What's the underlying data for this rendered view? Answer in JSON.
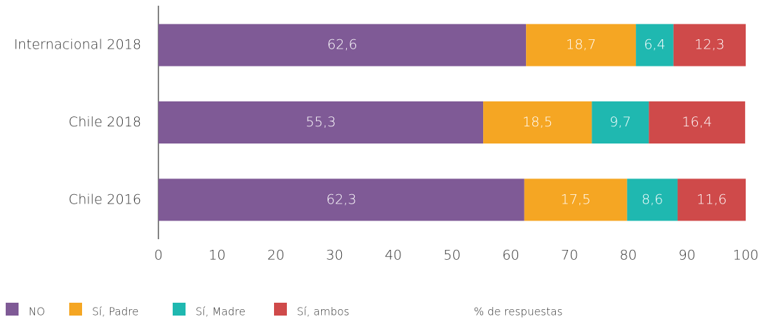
{
  "chart_data": {
    "type": "stacked-bar-horizontal",
    "categories": [
      "Internacional 2018",
      "Chile 2018",
      "Chile 2016"
    ],
    "series": [
      {
        "name": "NO",
        "color": "#7f5a96",
        "values": [
          62.6,
          55.3,
          62.3
        ],
        "value_labels": [
          "62,6",
          "55,3",
          "62,3"
        ]
      },
      {
        "name": "Sí, Padre",
        "color": "#f5a623",
        "values": [
          18.7,
          18.5,
          17.5
        ],
        "value_labels": [
          "18,7",
          "18,5",
          "17,5"
        ]
      },
      {
        "name": "Sí, Madre",
        "color": "#1fb8b0",
        "values": [
          6.4,
          9.7,
          8.6
        ],
        "value_labels": [
          "6,4",
          "9,7",
          "8,6"
        ]
      },
      {
        "name": "Sí, ambos",
        "color": "#cf4a4a",
        "values": [
          12.3,
          16.4,
          11.6
        ],
        "value_labels": [
          "12,3",
          "16,4",
          "11,6"
        ]
      }
    ],
    "xlabel": "% de respuestas",
    "xlim": [
      0,
      100
    ],
    "xticks": [
      0,
      10,
      20,
      30,
      40,
      50,
      60,
      70,
      80,
      90,
      100
    ],
    "grid": false
  }
}
